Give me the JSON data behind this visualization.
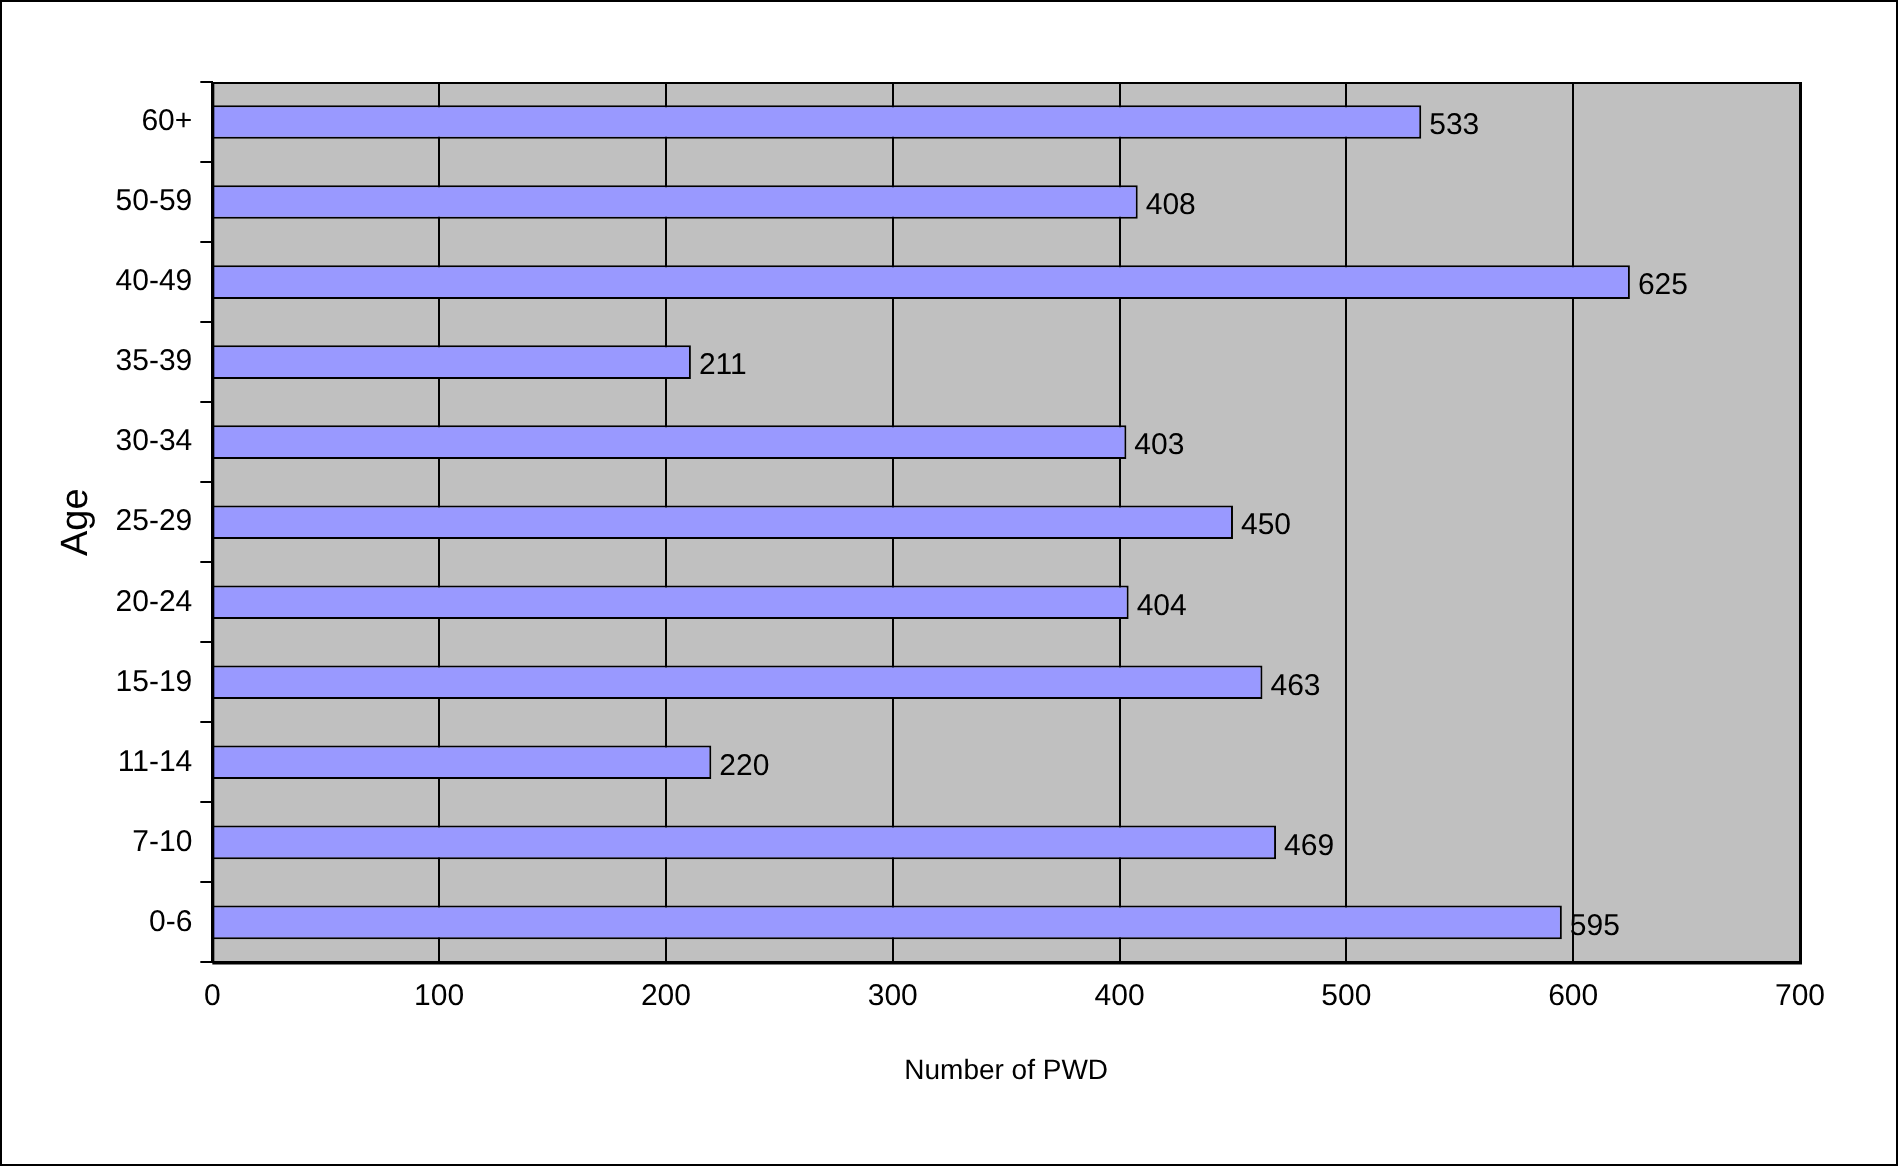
{
  "chart_data": {
    "type": "bar",
    "orientation": "horizontal",
    "xlabel": "Number of PWD",
    "ylabel": "Age",
    "categories": [
      "60+",
      "50-59",
      "40-49",
      "35-39",
      "30-34",
      "25-29",
      "20-24",
      "15-19",
      "11-14",
      "7-10",
      "0-6"
    ],
    "values": [
      533,
      408,
      625,
      211,
      403,
      450,
      404,
      463,
      220,
      469,
      595
    ],
    "color": "#9999ff",
    "xlim": [
      0,
      700
    ],
    "xticks": [
      0,
      100,
      200,
      300,
      400,
      500,
      600,
      700
    ],
    "grid": "x",
    "data_labels": true,
    "legend": false
  }
}
